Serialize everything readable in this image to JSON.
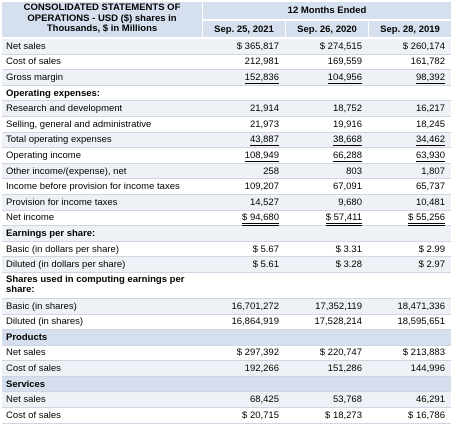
{
  "header": {
    "title": "CONSOLIDATED STATEMENTS OF OPERATIONS - USD ($) shares in Thousands, $ in Millions",
    "period": "12 Months Ended",
    "dates": [
      "Sep. 25, 2021",
      "Sep. 26, 2020",
      "Sep. 28, 2019"
    ]
  },
  "rows": [
    {
      "label": "Net sales",
      "values": [
        "$ 365,817",
        "$ 274,515",
        "$ 260,174"
      ],
      "type": "data"
    },
    {
      "label": "Cost of sales",
      "values": [
        "212,981",
        "169,559",
        "161,782"
      ],
      "type": "data"
    },
    {
      "label": "Gross margin",
      "values": [
        "152,836",
        "104,956",
        "98,392"
      ],
      "type": "data",
      "style": "ul"
    },
    {
      "label": "Operating expenses:",
      "values": [
        "",
        "",
        ""
      ],
      "type": "section"
    },
    {
      "label": "Research and development",
      "values": [
        "21,914",
        "18,752",
        "16,217"
      ],
      "type": "data"
    },
    {
      "label": "Selling, general and administrative",
      "values": [
        "21,973",
        "19,916",
        "18,245"
      ],
      "type": "data"
    },
    {
      "label": "Total operating expenses",
      "values": [
        "43,887",
        "38,668",
        "34,462"
      ],
      "type": "data",
      "style": "ul"
    },
    {
      "label": "Operating income",
      "values": [
        "108,949",
        "66,288",
        "63,930"
      ],
      "type": "data",
      "style": "ul"
    },
    {
      "label": "Other income/(expense), net",
      "values": [
        "258",
        "803",
        "1,807"
      ],
      "type": "data"
    },
    {
      "label": "Income before provision for income taxes",
      "values": [
        "109,207",
        "67,091",
        "65,737"
      ],
      "type": "data"
    },
    {
      "label": "Provision for income taxes",
      "values": [
        "14,527",
        "9,680",
        "10,481"
      ],
      "type": "data"
    },
    {
      "label": "Net income",
      "values": [
        "$ 94,680",
        "$ 57,411",
        "$ 55,256"
      ],
      "type": "data",
      "style": "dul"
    },
    {
      "label": "Earnings per share:",
      "values": [
        "",
        "",
        ""
      ],
      "type": "section"
    },
    {
      "label": "Basic (in dollars per share)",
      "values": [
        "$ 5.67",
        "$ 3.31",
        "$ 2.99"
      ],
      "type": "data"
    },
    {
      "label": "Diluted (in dollars per share)",
      "values": [
        "$ 5.61",
        "$ 3.28",
        "$ 2.97"
      ],
      "type": "data"
    },
    {
      "label": "Shares used in computing earnings per share:",
      "values": [
        "",
        "",
        ""
      ],
      "type": "section",
      "wrap": true
    },
    {
      "label": "Basic (in shares)",
      "values": [
        "16,701,272",
        "17,352,119",
        "18,471,336"
      ],
      "type": "data"
    },
    {
      "label": "Diluted (in shares)",
      "values": [
        "16,864,919",
        "17,528,214",
        "18,595,651"
      ],
      "type": "data"
    },
    {
      "label": "Products",
      "values": [
        "",
        "",
        ""
      ],
      "type": "band"
    },
    {
      "label": "Net sales",
      "values": [
        "$ 297,392",
        "$ 220,747",
        "$ 213,883"
      ],
      "type": "data"
    },
    {
      "label": "Cost of sales",
      "values": [
        "192,266",
        "151,286",
        "144,996"
      ],
      "type": "data"
    },
    {
      "label": "Services",
      "values": [
        "",
        "",
        ""
      ],
      "type": "band"
    },
    {
      "label": "Net sales",
      "values": [
        "68,425",
        "53,768",
        "46,291"
      ],
      "type": "data"
    },
    {
      "label": "Cost of sales",
      "values": [
        "$ 20,715",
        "$ 18,273",
        "$ 16,786"
      ],
      "type": "data"
    }
  ]
}
